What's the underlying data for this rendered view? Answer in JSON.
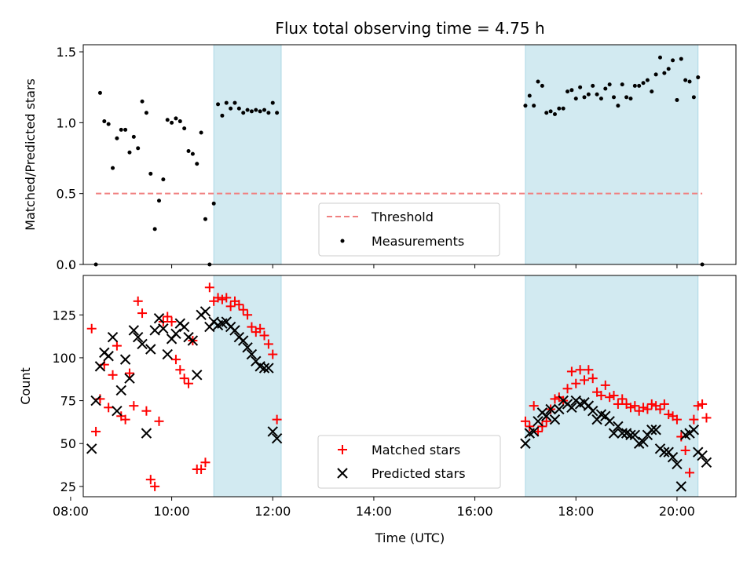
{
  "chart_data": {
    "title": "Flux total observing time = 4.75 h",
    "xlabel": "Time (UTC)",
    "xlim": [
      "08:15",
      "21:10"
    ],
    "x_ticks": [
      "08:00",
      "10:00",
      "12:00",
      "14:00",
      "16:00",
      "18:00",
      "20:00"
    ],
    "shaded_intervals": [
      [
        "10:50",
        "12:10"
      ],
      [
        "17:00",
        "20:25"
      ]
    ],
    "shade_color": "#add8e6",
    "panels": [
      {
        "type": "scatter",
        "ylabel": "Matched/Predicted stars",
        "ylim": [
          0,
          1.55
        ],
        "y_ticks": [
          "0.0",
          "0.5",
          "1.0",
          "1.5"
        ],
        "threshold": {
          "name": "Threshold",
          "value": 0.5,
          "x_range": [
            "08:30",
            "20:30"
          ],
          "color": "#f08080"
        },
        "legend": {
          "position": "lower-center",
          "entries": [
            "Threshold",
            "Measurements"
          ]
        },
        "series": [
          {
            "name": "Measurements",
            "color": "#000000",
            "x": [
              "08:30",
              "08:35",
              "08:40",
              "08:45",
              "08:50",
              "08:55",
              "09:00",
              "09:05",
              "09:10",
              "09:15",
              "09:20",
              "09:25",
              "09:30",
              "09:35",
              "09:40",
              "09:45",
              "09:50",
              "09:55",
              "10:00",
              "10:05",
              "10:10",
              "10:15",
              "10:20",
              "10:25",
              "10:30",
              "10:35",
              "10:40",
              "10:45",
              "10:50",
              "10:55",
              "11:00",
              "11:05",
              "11:10",
              "11:15",
              "11:20",
              "11:25",
              "11:30",
              "11:35",
              "11:40",
              "11:45",
              "11:50",
              "11:55",
              "12:00",
              "12:05",
              "17:00",
              "17:05",
              "17:10",
              "17:15",
              "17:20",
              "17:25",
              "17:30",
              "17:35",
              "17:40",
              "17:45",
              "17:50",
              "17:55",
              "18:00",
              "18:05",
              "18:10",
              "18:15",
              "18:20",
              "18:25",
              "18:30",
              "18:35",
              "18:40",
              "18:45",
              "18:50",
              "18:55",
              "19:00",
              "19:05",
              "19:10",
              "19:15",
              "19:20",
              "19:25",
              "19:30",
              "19:35",
              "19:40",
              "19:45",
              "19:50",
              "19:55",
              "20:00",
              "20:05",
              "20:10",
              "20:15",
              "20:20",
              "20:25",
              "20:30"
            ],
            "y": [
              0.0,
              1.21,
              1.01,
              0.99,
              0.68,
              0.89,
              0.95,
              0.95,
              0.79,
              0.9,
              0.82,
              1.15,
              1.07,
              0.64,
              0.25,
              0.45,
              0.6,
              1.02,
              1.0,
              1.03,
              1.01,
              0.96,
              0.8,
              0.78,
              0.71,
              0.93,
              0.32,
              0.0,
              0.43,
              1.13,
              1.05,
              1.14,
              1.1,
              1.14,
              1.1,
              1.07,
              1.09,
              1.08,
              1.09,
              1.08,
              1.09,
              1.07,
              1.14,
              1.07,
              1.12,
              1.19,
              1.12,
              1.29,
              1.26,
              1.07,
              1.08,
              1.06,
              1.1,
              1.1,
              1.22,
              1.23,
              1.17,
              1.25,
              1.18,
              1.2,
              1.26,
              1.2,
              1.17,
              1.24,
              1.27,
              1.18,
              1.12,
              1.27,
              1.18,
              1.17,
              1.26,
              1.26,
              1.28,
              1.3,
              1.22,
              1.34,
              1.46,
              1.35,
              1.38,
              1.44,
              1.16,
              1.45,
              1.3,
              1.29,
              1.18,
              1.32,
              0.0
            ]
          }
        ]
      },
      {
        "type": "scatter",
        "ylabel": "Count",
        "ylim": [
          19,
          148
        ],
        "y_ticks": [
          "25",
          "50",
          "75",
          "100",
          "125"
        ],
        "legend": {
          "position": "lower-center",
          "entries": [
            "Matched stars",
            "Predicted stars"
          ]
        },
        "series": [
          {
            "name": "Matched stars",
            "marker": "plus",
            "color": "#ff0000",
            "x": [
              "08:25",
              "08:30",
              "08:35",
              "08:40",
              "08:45",
              "08:50",
              "08:55",
              "09:00",
              "09:05",
              "09:10",
              "09:15",
              "09:20",
              "09:25",
              "09:30",
              "09:35",
              "09:40",
              "09:45",
              "09:50",
              "09:55",
              "10:00",
              "10:05",
              "10:10",
              "10:15",
              "10:20",
              "10:25",
              "10:30",
              "10:35",
              "10:40",
              "10:45",
              "10:50",
              "10:55",
              "11:00",
              "11:05",
              "11:10",
              "11:15",
              "11:20",
              "11:25",
              "11:30",
              "11:35",
              "11:40",
              "11:45",
              "11:50",
              "11:55",
              "12:00",
              "12:05",
              "17:00",
              "17:05",
              "17:10",
              "17:15",
              "17:20",
              "17:25",
              "17:30",
              "17:35",
              "17:40",
              "17:45",
              "17:50",
              "17:55",
              "18:00",
              "18:05",
              "18:10",
              "18:15",
              "18:20",
              "18:25",
              "18:30",
              "18:35",
              "18:40",
              "18:45",
              "18:50",
              "18:55",
              "19:00",
              "19:05",
              "19:10",
              "19:15",
              "19:20",
              "19:25",
              "19:30",
              "19:35",
              "19:40",
              "19:45",
              "19:50",
              "19:55",
              "20:00",
              "20:05",
              "20:10",
              "20:15",
              "20:20",
              "20:25",
              "20:30",
              "20:35"
            ],
            "y": [
              117,
              57,
              76,
              96,
              71,
              90,
              107,
              66,
              64,
              91,
              72,
              133,
              126,
              69,
              29,
              25,
              63,
              121,
              124,
              121,
              99,
              93,
              88,
              85,
              110,
              35,
              35,
              39,
              141,
              133,
              135,
              134,
              135,
              130,
              133,
              131,
              128,
              125,
              118,
              115,
              117,
              113,
              108,
              102,
              64,
              63,
              60,
              72,
              57,
              60,
              63,
              70,
              76,
              77,
              75,
              82,
              92,
              85,
              93,
              87,
              93,
              88,
              80,
              78,
              84,
              77,
              78,
              73,
              76,
              73,
              71,
              72,
              69,
              71,
              70,
              73,
              72,
              70,
              73,
              67,
              66,
              64,
              54,
              46,
              33,
              64,
              72,
              73,
              65
            ],
            "note_order": "approximate"
          },
          {
            "name": "Predicted stars",
            "marker": "x",
            "color": "#000000",
            "x": [
              "08:25",
              "08:30",
              "08:35",
              "08:40",
              "08:45",
              "08:50",
              "08:55",
              "09:00",
              "09:05",
              "09:10",
              "09:15",
              "09:20",
              "09:25",
              "09:30",
              "09:35",
              "09:40",
              "09:45",
              "09:50",
              "09:55",
              "10:00",
              "10:05",
              "10:10",
              "10:15",
              "10:20",
              "10:25",
              "10:30",
              "10:35",
              "10:40",
              "10:45",
              "10:50",
              "10:55",
              "11:00",
              "11:05",
              "11:10",
              "11:15",
              "11:20",
              "11:25",
              "11:30",
              "11:35",
              "11:40",
              "11:45",
              "11:50",
              "11:55",
              "12:00",
              "12:05",
              "17:00",
              "17:05",
              "17:10",
              "17:15",
              "17:20",
              "17:25",
              "17:30",
              "17:35",
              "17:40",
              "17:45",
              "17:50",
              "17:55",
              "18:00",
              "18:05",
              "18:10",
              "18:15",
              "18:20",
              "18:25",
              "18:30",
              "18:35",
              "18:40",
              "18:45",
              "18:50",
              "18:55",
              "19:00",
              "19:05",
              "19:10",
              "19:15",
              "19:20",
              "19:25",
              "19:30",
              "19:35",
              "19:40",
              "19:45",
              "19:50",
              "19:55",
              "20:00",
              "20:05",
              "20:10",
              "20:15",
              "20:20",
              "20:25",
              "20:30",
              "20:35"
            ],
            "y": [
              47,
              75,
              95,
              103,
              101,
              112,
              69,
              81,
              99,
              88,
              116,
              112,
              108,
              56,
              105,
              116,
              123,
              117,
              102,
              111,
              114,
              120,
              118,
              112,
              110,
              90,
              125,
              127,
              118,
              121,
              119,
              120,
              121,
              118,
              116,
              112,
              110,
              106,
              102,
              98,
              95,
              94,
              94,
              57,
              53,
              50,
              56,
              57,
              63,
              68,
              66,
              70,
              64,
              70,
              75,
              73,
              71,
              75,
              73,
              74,
              72,
              69,
              64,
              67,
              66,
              63,
              56,
              60,
              56,
              56,
              55,
              55,
              50,
              51,
              55,
              58,
              58,
              47,
              45,
              45,
              42,
              38,
              25,
              55,
              56,
              58,
              45,
              43,
              39
            ]
          }
        ]
      }
    ]
  }
}
